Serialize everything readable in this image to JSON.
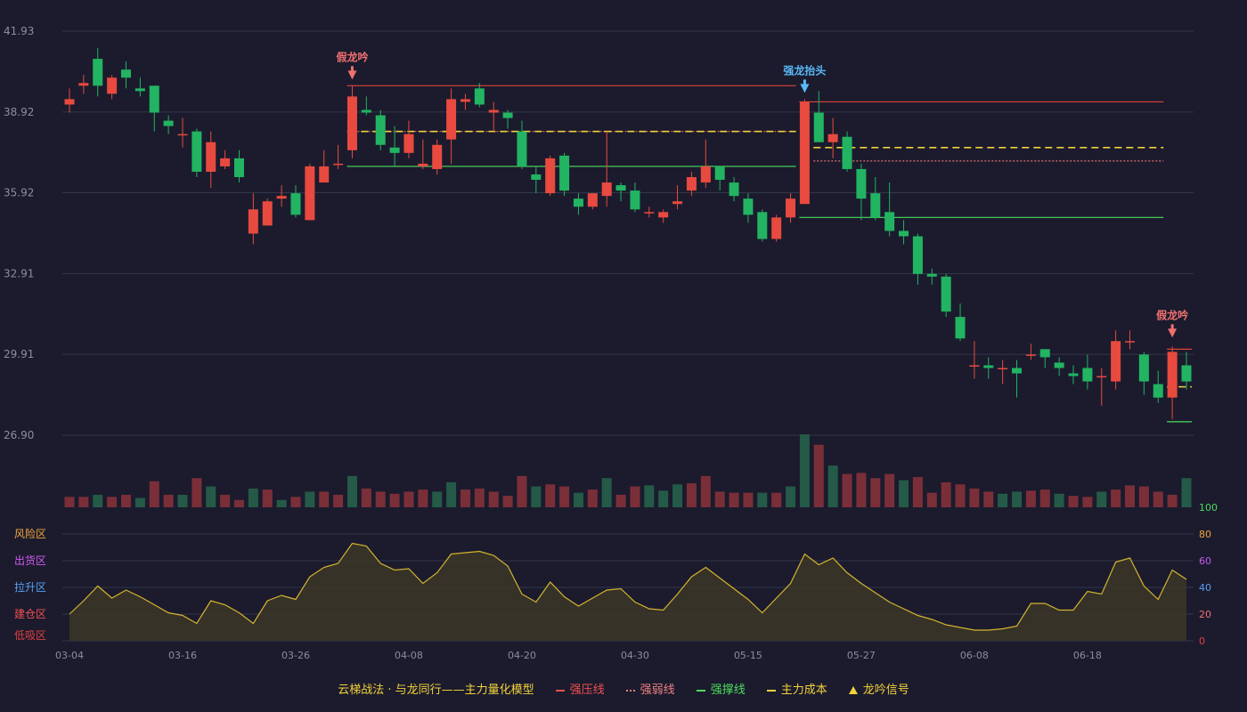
{
  "chart_data": {
    "type": "candlestick",
    "price_axis": {
      "ylim": [
        26.9,
        41.93
      ],
      "ticks": [
        "41.93",
        "38.92",
        "35.92",
        "32.91",
        "29.91",
        "26.90"
      ]
    },
    "x_ticks": [
      {
        "index": 0,
        "label": "03-04"
      },
      {
        "index": 8,
        "label": "03-16"
      },
      {
        "index": 16,
        "label": "03-26"
      },
      {
        "index": 24,
        "label": "04-08"
      },
      {
        "index": 32,
        "label": "04-20"
      },
      {
        "index": 40,
        "label": "04-30"
      },
      {
        "index": 48,
        "label": "05-15"
      },
      {
        "index": 56,
        "label": "05-27"
      },
      {
        "index": 64,
        "label": "06-08"
      },
      {
        "index": 72,
        "label": "06-18"
      }
    ],
    "candles": [
      [
        39.2,
        39.4,
        39.8,
        38.9
      ],
      [
        39.9,
        40.0,
        40.3,
        39.6
      ],
      [
        40.9,
        39.9,
        41.3,
        39.5
      ],
      [
        39.6,
        40.2,
        40.3,
        39.4
      ],
      [
        40.5,
        40.2,
        40.8,
        39.8
      ],
      [
        39.8,
        39.7,
        40.2,
        39.5
      ],
      [
        39.9,
        38.9,
        39.9,
        38.2
      ],
      [
        38.6,
        38.4,
        38.8,
        38.1
      ],
      [
        38.1,
        38.1,
        38.7,
        37.6
      ],
      [
        38.2,
        36.7,
        38.3,
        36.5
      ],
      [
        36.7,
        37.8,
        38.2,
        36.1
      ],
      [
        36.9,
        37.2,
        37.5,
        36.8
      ],
      [
        37.2,
        36.5,
        37.5,
        36.3
      ],
      [
        34.4,
        35.3,
        35.9,
        34.0
      ],
      [
        34.7,
        35.6,
        35.7,
        34.7
      ],
      [
        35.7,
        35.8,
        36.2,
        35.4
      ],
      [
        35.9,
        35.1,
        36.2,
        35.0
      ],
      [
        34.9,
        36.9,
        37.0,
        34.9
      ],
      [
        36.3,
        36.9,
        37.5,
        36.3
      ],
      [
        37.0,
        37.0,
        37.7,
        36.8
      ],
      [
        37.5,
        39.5,
        39.9,
        37.2
      ],
      [
        39.0,
        38.9,
        39.5,
        38.8
      ],
      [
        38.8,
        37.7,
        39.0,
        37.5
      ],
      [
        37.6,
        37.4,
        38.4,
        36.9
      ],
      [
        37.4,
        38.1,
        38.6,
        37.2
      ],
      [
        36.9,
        37.0,
        37.9,
        36.8
      ],
      [
        36.8,
        37.7,
        37.9,
        36.6
      ],
      [
        37.9,
        39.4,
        39.8,
        37.0
      ],
      [
        39.3,
        39.4,
        39.6,
        39.0
      ],
      [
        39.8,
        39.2,
        40.0,
        39.1
      ],
      [
        38.9,
        39.0,
        39.3,
        38.2
      ],
      [
        38.9,
        38.7,
        39.0,
        38.3
      ],
      [
        38.2,
        36.9,
        38.6,
        36.8
      ],
      [
        36.6,
        36.4,
        36.9,
        35.9
      ],
      [
        35.9,
        37.2,
        37.3,
        35.8
      ],
      [
        37.3,
        36.0,
        37.4,
        35.8
      ],
      [
        35.7,
        35.4,
        35.9,
        35.1
      ],
      [
        35.4,
        35.9,
        35.9,
        35.3
      ],
      [
        35.8,
        36.3,
        38.2,
        35.4
      ],
      [
        36.2,
        36.0,
        36.3,
        35.6
      ],
      [
        36.0,
        35.3,
        36.3,
        35.2
      ],
      [
        35.2,
        35.2,
        35.4,
        35.0
      ],
      [
        35.0,
        35.2,
        35.3,
        34.8
      ],
      [
        35.5,
        35.6,
        36.2,
        35.3
      ],
      [
        36.0,
        36.5,
        36.7,
        35.8
      ],
      [
        36.3,
        36.9,
        37.9,
        36.1
      ],
      [
        36.9,
        36.4,
        36.9,
        36.0
      ],
      [
        36.3,
        35.8,
        36.5,
        35.6
      ],
      [
        35.7,
        35.1,
        35.9,
        34.8
      ],
      [
        35.2,
        34.2,
        35.3,
        34.1
      ],
      [
        34.2,
        35.0,
        35.1,
        34.1
      ],
      [
        35.0,
        35.7,
        35.9,
        34.8
      ],
      [
        35.5,
        39.3,
        39.4,
        35.5
      ],
      [
        38.9,
        37.8,
        39.7,
        37.8
      ],
      [
        37.8,
        38.1,
        38.7,
        37.2
      ],
      [
        38.0,
        36.8,
        38.2,
        36.7
      ],
      [
        36.8,
        35.7,
        37.0,
        34.9
      ],
      [
        35.9,
        35.0,
        36.5,
        34.9
      ],
      [
        35.2,
        34.5,
        36.3,
        34.3
      ],
      [
        34.5,
        34.3,
        34.9,
        34.0
      ],
      [
        34.3,
        32.9,
        34.4,
        32.5
      ],
      [
        32.9,
        32.8,
        33.1,
        32.5
      ],
      [
        32.8,
        31.5,
        32.9,
        31.3
      ],
      [
        31.3,
        30.5,
        31.8,
        30.4
      ],
      [
        29.5,
        29.5,
        30.4,
        29.0
      ],
      [
        29.5,
        29.4,
        29.8,
        29.0
      ],
      [
        29.4,
        29.4,
        29.7,
        28.8
      ],
      [
        29.4,
        29.2,
        29.7,
        28.3
      ],
      [
        29.9,
        29.9,
        30.3,
        29.7
      ],
      [
        30.1,
        29.8,
        30.1,
        29.4
      ],
      [
        29.6,
        29.4,
        29.8,
        29.1
      ],
      [
        29.2,
        29.1,
        29.5,
        28.8
      ],
      [
        29.4,
        28.9,
        29.9,
        28.6
      ],
      [
        29.1,
        29.1,
        29.4,
        28.0
      ],
      [
        28.9,
        30.4,
        30.8,
        28.6
      ],
      [
        30.4,
        30.4,
        30.8,
        30.1
      ],
      [
        29.9,
        28.9,
        30.0,
        28.4
      ],
      [
        28.8,
        28.3,
        29.3,
        28.1
      ],
      [
        28.3,
        30.0,
        30.2,
        27.5
      ],
      [
        29.5,
        28.9,
        30.0,
        28.6
      ]
    ],
    "volume_colors": [
      "down",
      "down",
      "up",
      "down",
      "down",
      "up",
      "down",
      "down",
      "up",
      "down",
      "up",
      "down",
      "down",
      "up",
      "down",
      "up",
      "down",
      "up",
      "down",
      "down",
      "up",
      "down",
      "down",
      "down",
      "down",
      "down",
      "up",
      "up",
      "down",
      "down",
      "down",
      "down",
      "down",
      "up",
      "down",
      "down",
      "up",
      "down",
      "up",
      "down",
      "down",
      "up",
      "up",
      "up",
      "down",
      "down",
      "down",
      "down",
      "down",
      "up",
      "down",
      "up",
      "up",
      "down",
      "up",
      "down",
      "down",
      "down",
      "down",
      "up",
      "down",
      "down",
      "down",
      "down",
      "down",
      "down",
      "up",
      "up",
      "down",
      "down",
      "up",
      "down",
      "down",
      "up",
      "down",
      "down",
      "down",
      "down",
      "down",
      "up"
    ],
    "volumes": [
      10,
      10,
      12,
      10,
      12,
      9,
      25,
      12,
      12,
      28,
      20,
      12,
      7,
      18,
      17,
      7,
      10,
      15,
      15,
      12,
      30,
      18,
      15,
      13,
      15,
      17,
      15,
      24,
      17,
      18,
      15,
      11,
      30,
      20,
      22,
      20,
      14,
      17,
      28,
      12,
      20,
      21,
      16,
      22,
      23,
      30,
      15,
      14,
      14,
      14,
      14,
      20,
      70,
      60,
      40,
      32,
      33,
      28,
      32,
      26,
      29,
      14,
      24,
      22,
      18,
      15,
      13,
      15,
      16,
      17,
      13,
      11,
      10,
      15,
      17,
      21,
      20,
      15,
      12,
      28
    ],
    "lines": [
      {
        "name": "强压线",
        "color": "#e0403a",
        "style": "solid",
        "from": 20,
        "to": 51,
        "value": 39.9
      },
      {
        "name": "强弱线",
        "color": "#e07070",
        "style": "dotted",
        "from": 20,
        "to": 51,
        "value": 38.2
      },
      {
        "name": "主力成本",
        "color": "#f2d13a",
        "style": "dashed",
        "from": 21,
        "to": 51,
        "value": 38.2
      },
      {
        "name": "强撑线",
        "color": "#4ddc5e",
        "style": "solid",
        "from": 20,
        "to": 51,
        "value": 36.9
      },
      {
        "name": "强压线",
        "color": "#e0403a",
        "style": "solid",
        "from": 52,
        "to": 77,
        "value": 39.3
      },
      {
        "name": "主力成本",
        "color": "#f2d13a",
        "style": "dashed",
        "from": 53,
        "to": 77,
        "value": 37.6
      },
      {
        "name": "强弱线",
        "color": "#e07070",
        "style": "dotted",
        "from": 53,
        "to": 77,
        "value": 37.1
      },
      {
        "name": "强撑线",
        "color": "#4ddc5e",
        "style": "solid",
        "from": 52,
        "to": 77,
        "value": 35.0
      },
      {
        "name": "强压线",
        "color": "#e0403a",
        "style": "solid",
        "from": 78,
        "to": 79,
        "value": 30.1
      },
      {
        "name": "主力成本",
        "color": "#f2d13a",
        "style": "dashed",
        "from": 78,
        "to": 79,
        "value": 28.7
      },
      {
        "name": "强撑线",
        "color": "#4ddc5e",
        "style": "solid",
        "from": 78,
        "to": 79,
        "value": 27.4
      }
    ],
    "signals": [
      {
        "index": 20,
        "label": "假龙吟",
        "color": "#f07070",
        "price": 39.9
      },
      {
        "index": 52,
        "label": "强龙抬头",
        "color": "#5ab8f5",
        "price": 39.4
      },
      {
        "index": 78,
        "label": "假龙吟",
        "color": "#f07070",
        "price": 30.3
      }
    ],
    "oscillator": {
      "ylim": [
        0,
        100
      ],
      "right_ticks": [
        {
          "label": "100",
          "value": 100,
          "color": "#4ddc5e"
        },
        {
          "label": "80",
          "value": 80,
          "color": "#f2a43a"
        },
        {
          "label": "60",
          "value": 60,
          "color": "#c85af0"
        },
        {
          "label": "40",
          "value": 40,
          "color": "#5aa0f0"
        },
        {
          "label": "20",
          "value": 20,
          "color": "#f07070"
        },
        {
          "label": "0",
          "value": 0,
          "color": "#e04040"
        }
      ],
      "zones": [
        {
          "label": "风险区",
          "value": 80,
          "color": "#f2a43a"
        },
        {
          "label": "出货区",
          "value": 60,
          "color": "#d05af0"
        },
        {
          "label": "拉升区",
          "value": 40,
          "color": "#5aa0f0"
        },
        {
          "label": "建仓区",
          "value": 20,
          "color": "#f05050"
        },
        {
          "label": "低吸区",
          "value": 0,
          "color": "#e04040"
        }
      ],
      "values": [
        20,
        30,
        41,
        32,
        38,
        33,
        27,
        21,
        19,
        13,
        30,
        27,
        21,
        13,
        30,
        34,
        31,
        48,
        55,
        58,
        73,
        71,
        58,
        53,
        54,
        43,
        51,
        65,
        66,
        67,
        64,
        56,
        35,
        29,
        44,
        33,
        26,
        32,
        38,
        39,
        29,
        24,
        23,
        35,
        48,
        55,
        47,
        39,
        31,
        21,
        32,
        43,
        65,
        57,
        62,
        51,
        43,
        36,
        29,
        24,
        19,
        16,
        12,
        10,
        8,
        8,
        9,
        11,
        28,
        28,
        23,
        23,
        37,
        35,
        59,
        62,
        41,
        31,
        53,
        46
      ]
    },
    "legend": [
      {
        "text": "云梯战法 · 与龙同行——主力量化模型",
        "color": "#f2d13a",
        "mark": "none"
      },
      {
        "text": "强压线",
        "color": "#f05050",
        "mark": "solid"
      },
      {
        "text": "强弱线",
        "color": "#f08080",
        "mark": "dotted"
      },
      {
        "text": "强撑线",
        "color": "#4ddc5e",
        "mark": "solid"
      },
      {
        "text": "主力成本",
        "color": "#f2d13a",
        "mark": "dashed"
      },
      {
        "text": "龙吟信号",
        "color": "#f2d13a",
        "mark": "triangle"
      }
    ]
  }
}
